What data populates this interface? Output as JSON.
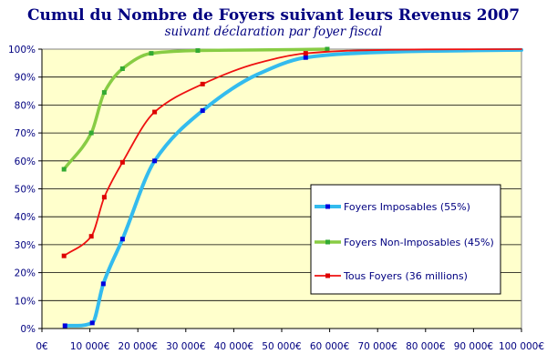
{
  "chart_data": {
    "type": "line",
    "title": "Cumul du Nombre de Foyers  suivant leurs Revenus 2007",
    "subtitle": "suivant déclaration par foyer fiscal",
    "xlabel": "",
    "ylabel": "",
    "xlim": [
      0,
      100000
    ],
    "ylim": [
      0,
      1
    ],
    "x_tick_labels": [
      "0€",
      "10 000€",
      "20 000€",
      "30 000€",
      "40 000€",
      "50 000€",
      "60 000€",
      "70 000€",
      "80 000€",
      "90 000€",
      "100 000€"
    ],
    "y_tick_labels": [
      "0%",
      "10%",
      "20%",
      "30%",
      "40%",
      "50%",
      "60%",
      "70%",
      "80%",
      "90%",
      "100%"
    ],
    "grid": "horizontal",
    "legend_position": "right",
    "colors": {
      "plot_background": "#ffffcc",
      "grid": "#000000",
      "text": "#000080"
    },
    "series": [
      {
        "name": "Foyers Imposables (55%)",
        "color": "#33bbee",
        "x": [
          4800,
          7500,
          10500,
          12800,
          16800,
          23500,
          33500,
          45000,
          55000,
          65000,
          80000,
          100000
        ],
        "y": [
          0.01,
          0.01,
          0.02,
          0.16,
          0.32,
          0.6,
          0.78,
          0.91,
          0.97,
          0.985,
          0.993,
          0.997
        ],
        "markers": [
          [
            4800,
            0.01
          ],
          [
            10500,
            0.02
          ],
          [
            12800,
            0.16
          ],
          [
            16800,
            0.32
          ],
          [
            23500,
            0.6
          ],
          [
            33500,
            0.78
          ],
          [
            55000,
            0.97
          ]
        ]
      },
      {
        "name": "Foyers Non-Imposables (45%)",
        "color": "#88cc44",
        "x": [
          4600,
          10300,
          13000,
          16800,
          22800,
          32500,
          45000,
          59500
        ],
        "y": [
          0.57,
          0.7,
          0.845,
          0.93,
          0.985,
          0.995,
          0.997,
          1.0
        ],
        "markers": [
          [
            4600,
            0.57
          ],
          [
            10300,
            0.7
          ],
          [
            13000,
            0.845
          ],
          [
            16800,
            0.93
          ],
          [
            22800,
            0.985
          ],
          [
            32500,
            0.995
          ],
          [
            59500,
            1.0
          ]
        ]
      },
      {
        "name": "Tous Foyers (36 millions)",
        "color": "#ee1111",
        "x": [
          4600,
          10300,
          13000,
          16800,
          23500,
          33500,
          45000,
          55000,
          65000,
          80000,
          100000
        ],
        "y": [
          0.26,
          0.33,
          0.47,
          0.595,
          0.775,
          0.875,
          0.95,
          0.985,
          0.995,
          0.999,
          1.0
        ],
        "markers": [
          [
            4600,
            0.26
          ],
          [
            10300,
            0.33
          ],
          [
            13000,
            0.47
          ],
          [
            16800,
            0.595
          ],
          [
            23500,
            0.775
          ],
          [
            33500,
            0.875
          ],
          [
            55000,
            0.985
          ]
        ]
      }
    ]
  }
}
